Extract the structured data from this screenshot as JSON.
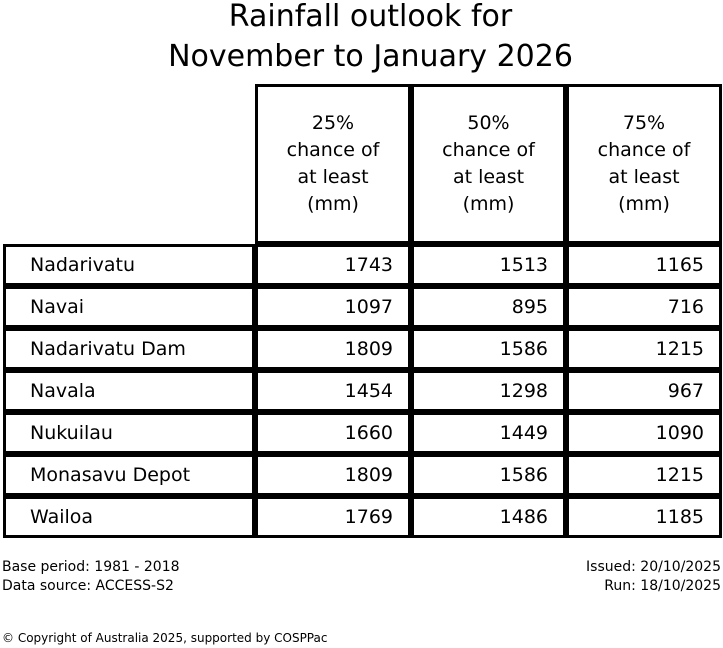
{
  "title": {
    "line1": "Rainfall outlook for",
    "line2": "November to January 2026"
  },
  "chart_data": {
    "type": "table",
    "title": "Rainfall outlook for November to January 2026",
    "column_headers": [
      "25%\nchance of\nat least\n(mm)",
      "50%\nchance of\nat least\n(mm)",
      "75%\nchance of\nat least\n(mm)"
    ],
    "row_header_label": "",
    "rows": [
      {
        "station": "Nadarivatu",
        "p25": 1743,
        "p50": 1513,
        "p75": 1165
      },
      {
        "station": "Navai",
        "p25": 1097,
        "p50": 895,
        "p75": 716
      },
      {
        "station": "Nadarivatu Dam",
        "p25": 1809,
        "p50": 1586,
        "p75": 1215
      },
      {
        "station": "Navala",
        "p25": 1454,
        "p50": 1298,
        "p75": 967
      },
      {
        "station": "Nukuilau",
        "p25": 1660,
        "p50": 1449,
        "p75": 1090
      },
      {
        "station": "Monasavu Depot",
        "p25": 1809,
        "p50": 1586,
        "p75": 1215
      },
      {
        "station": "Wailoa",
        "p25": 1769,
        "p50": 1486,
        "p75": 1185
      }
    ]
  },
  "footer": {
    "base_period": "Base period: 1981 - 2018",
    "data_source": "Data source: ACCESS-S2",
    "issued": "Issued: 20/10/2025",
    "run": "Run: 18/10/2025"
  },
  "copyright": "© Copyright of Australia 2025, supported by COSPPac",
  "colors": {
    "background": "#ffffff",
    "text": "#000000",
    "border": "#000000"
  }
}
